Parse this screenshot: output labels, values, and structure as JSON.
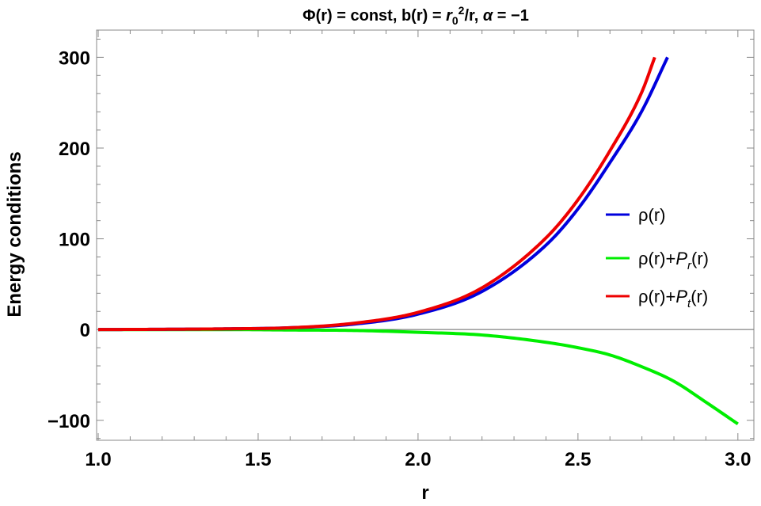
{
  "chart_data": {
    "type": "line",
    "title": {
      "part1": "Φ(r) = const, b(r) = ",
      "r": "r",
      "sub0": "0",
      "sup2": "2",
      "part2": "/r, ",
      "alpha": "α",
      "part3": " = −1"
    },
    "xlabel": "r",
    "ylabel": "Energy conditions",
    "xlim": [
      0.995,
      3.05
    ],
    "ylim": [
      -122,
      330
    ],
    "x_ticks": [
      1.0,
      1.5,
      2.0,
      2.5,
      3.0
    ],
    "x_tick_labels": [
      "1.0",
      "1.5",
      "2.0",
      "2.5",
      "3.0"
    ],
    "y_ticks": [
      -100,
      0,
      100,
      200,
      300
    ],
    "y_tick_labels": [
      "−100",
      "0",
      "100",
      "200",
      "300"
    ],
    "grid": false,
    "legend_position": "right",
    "series": [
      {
        "name": "ρ(r)",
        "legend": {
          "base": "ρ(r)"
        },
        "color": "#0000dd",
        "x": [
          1.0,
          1.2,
          1.4,
          1.6,
          1.8,
          2.0,
          2.2,
          2.4,
          2.5,
          2.6,
          2.7,
          2.78
        ],
        "y": [
          0,
          0.3,
          0.8,
          2,
          6,
          17,
          42,
          93,
          133,
          184,
          241,
          300
        ]
      },
      {
        "name": "ρ(r)+Pr(r)",
        "legend": {
          "base": "ρ(r)+",
          "italic": "P",
          "sub": "r",
          "tail": "(r)"
        },
        "color": "#00ee00",
        "x": [
          1.0,
          1.4,
          1.6,
          1.8,
          2.0,
          2.2,
          2.4,
          2.5,
          2.6,
          2.7,
          2.8,
          2.9,
          3.0
        ],
        "y": [
          0,
          0,
          -0.5,
          -1,
          -3,
          -6,
          -14,
          -20,
          -28,
          -41,
          -57,
          -80,
          -104
        ]
      },
      {
        "name": "ρ(r)+Pt(r)",
        "legend": {
          "base": "ρ(r)+",
          "italic": "P",
          "sub": "t",
          "tail": "(r)"
        },
        "color": "#ee0000",
        "x": [
          1.0,
          1.2,
          1.4,
          1.6,
          1.8,
          2.0,
          2.2,
          2.4,
          2.5,
          2.6,
          2.7,
          2.74
        ],
        "y": [
          0,
          0.3,
          0.8,
          2,
          7,
          19,
          46,
          101,
          143,
          197,
          262,
          300
        ]
      }
    ]
  }
}
